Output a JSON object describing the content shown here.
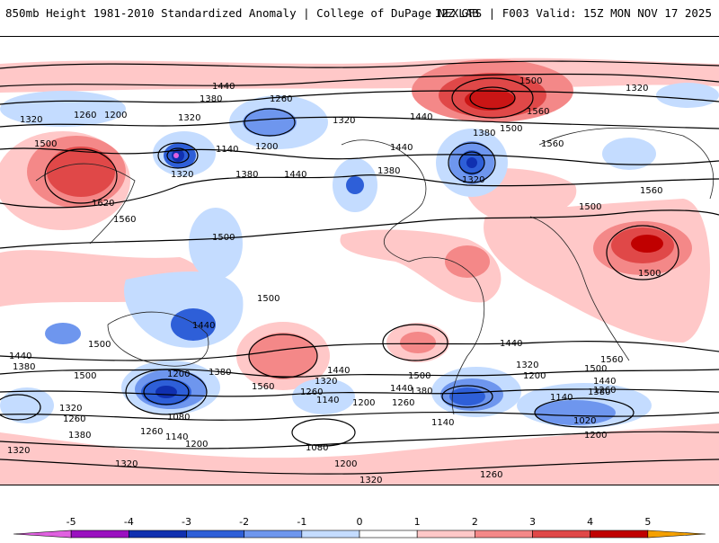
{
  "header": {
    "title_left": "850mb Height 1981-2010 Standardized Anomaly | College of DuPage NEXLAB",
    "title_right": "12Z GFS | F003 Valid: 15Z MON NOV 17 2025"
  },
  "map": {
    "contour_labels": [
      "1440",
      "1380",
      "1320",
      "1260",
      "1200",
      "1500",
      "1560",
      "1620",
      "1140",
      "1080",
      "1020"
    ]
  },
  "colorbar": {
    "ticks": [
      "-5",
      "-4",
      "-3",
      "-2",
      "-1",
      "0",
      "1",
      "2",
      "3",
      "4",
      "5"
    ],
    "colors": [
      "#e060e0",
      "#9a10c0",
      "#1030b0",
      "#2e5fd8",
      "#6e96ee",
      "#c4dcff",
      "#ffffff",
      "#ffc8c8",
      "#f48888",
      "#e04848",
      "#c00000",
      "#f4a000"
    ]
  }
}
